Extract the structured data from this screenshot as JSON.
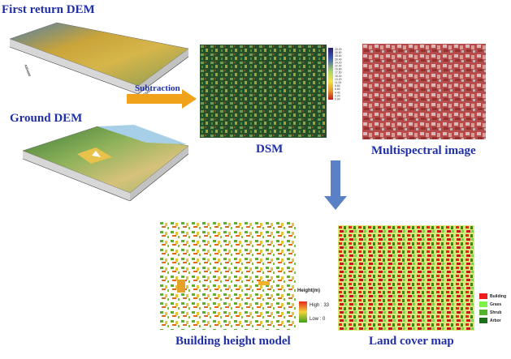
{
  "labels": {
    "first_return_dem": "First return  DEM",
    "ground_dem": "Ground  DEM",
    "subtraction": "Subtraction",
    "dsm": "DSM",
    "multispectral": "Multispectral image",
    "building_height_model": "Building  height model",
    "land_cover_map": "Land  cover map"
  },
  "height_legend": {
    "title": "Height(m)",
    "high": "High : 33",
    "low": "Low : 0"
  },
  "dsm_scale_ticks": [
    "0.00",
    "2.20",
    "4.40",
    "6.60",
    "8.80",
    "11.00",
    "13.20",
    "15.40",
    "17.60",
    "19.80",
    "22.00",
    "24.20",
    "26.40",
    "28.60",
    "30.80",
    "33.00"
  ],
  "land_cover_legend": [
    {
      "label": "Building",
      "color": "#ee1c1c"
    },
    {
      "label": "Grass",
      "color": "#7cf24a"
    },
    {
      "label": "Shrub",
      "color": "#55b22f"
    },
    {
      "label": "Arbor",
      "color": "#1f6e1a"
    }
  ],
  "colors": {
    "title_blue": "#1f2fa8",
    "arrow_orange": "#f0a21a",
    "arrow_blue": "#5a80c6"
  }
}
